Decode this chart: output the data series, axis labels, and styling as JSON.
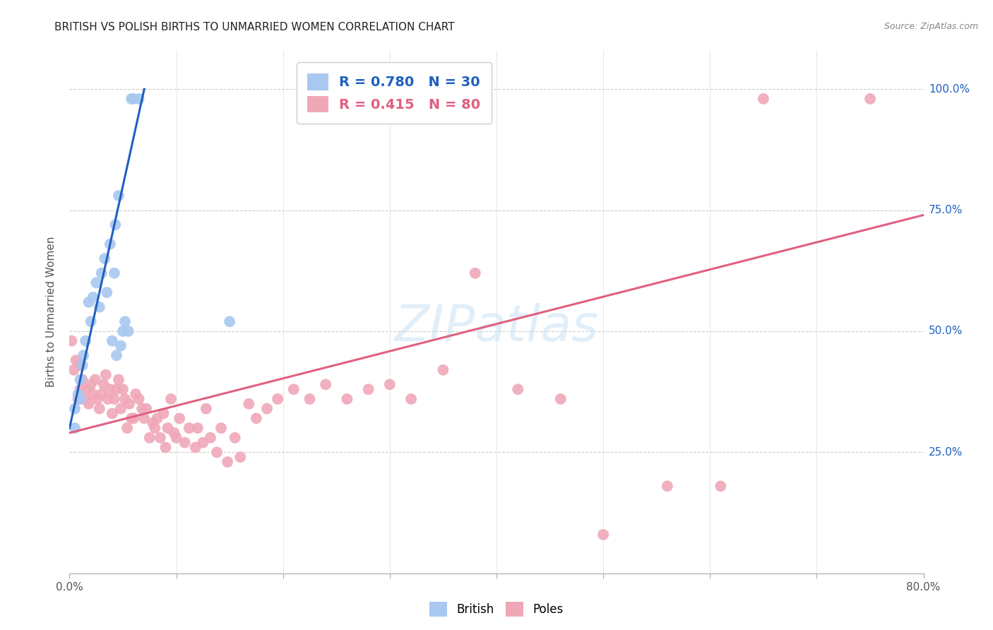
{
  "title": "BRITISH VS POLISH BIRTHS TO UNMARRIED WOMEN CORRELATION CHART",
  "source": "Source: ZipAtlas.com",
  "ylabel": "Births to Unmarried Women",
  "x_min": 0.0,
  "x_max": 0.8,
  "y_min": 0.0,
  "y_max": 1.08,
  "y_ticks": [
    0.25,
    0.5,
    0.75,
    1.0
  ],
  "y_tick_labels": [
    "25.0%",
    "50.0%",
    "75.0%",
    "100.0%"
  ],
  "british_color": "#a8c8f0",
  "poles_color": "#f0a8b8",
  "british_line_color": "#2060c0",
  "poles_line_color": "#e06080",
  "british_R": 0.78,
  "british_N": 30,
  "poles_R": 0.415,
  "poles_N": 80,
  "watermark_text": "ZIPatlas",
  "british_x": [
    0.005,
    0.005,
    0.008,
    0.01,
    0.01,
    0.012,
    0.013,
    0.015,
    0.018,
    0.02,
    0.022,
    0.025,
    0.028,
    0.03,
    0.033,
    0.035,
    0.038,
    0.04,
    0.042,
    0.043,
    0.044,
    0.046,
    0.048,
    0.05,
    0.052,
    0.055,
    0.058,
    0.06,
    0.065,
    0.15
  ],
  "british_y": [
    0.34,
    0.3,
    0.37,
    0.4,
    0.36,
    0.43,
    0.45,
    0.48,
    0.56,
    0.52,
    0.57,
    0.6,
    0.55,
    0.62,
    0.65,
    0.58,
    0.68,
    0.48,
    0.62,
    0.72,
    0.45,
    0.78,
    0.47,
    0.5,
    0.52,
    0.5,
    0.98,
    0.98,
    0.98,
    0.52
  ],
  "poles_x": [
    0.002,
    0.004,
    0.006,
    0.008,
    0.01,
    0.01,
    0.012,
    0.014,
    0.016,
    0.018,
    0.02,
    0.022,
    0.024,
    0.026,
    0.028,
    0.03,
    0.032,
    0.034,
    0.036,
    0.038,
    0.04,
    0.042,
    0.044,
    0.046,
    0.048,
    0.05,
    0.052,
    0.054,
    0.056,
    0.058,
    0.06,
    0.062,
    0.065,
    0.068,
    0.07,
    0.072,
    0.075,
    0.078,
    0.08,
    0.082,
    0.085,
    0.088,
    0.09,
    0.092,
    0.095,
    0.098,
    0.1,
    0.103,
    0.108,
    0.112,
    0.118,
    0.12,
    0.125,
    0.128,
    0.132,
    0.138,
    0.142,
    0.148,
    0.155,
    0.16,
    0.168,
    0.175,
    0.185,
    0.195,
    0.21,
    0.225,
    0.24,
    0.26,
    0.28,
    0.3,
    0.32,
    0.35,
    0.38,
    0.42,
    0.46,
    0.5,
    0.56,
    0.61,
    0.65,
    0.75
  ],
  "poles_y": [
    0.48,
    0.42,
    0.44,
    0.36,
    0.43,
    0.38,
    0.4,
    0.36,
    0.38,
    0.35,
    0.39,
    0.37,
    0.4,
    0.36,
    0.34,
    0.37,
    0.39,
    0.41,
    0.36,
    0.38,
    0.33,
    0.36,
    0.38,
    0.4,
    0.34,
    0.38,
    0.36,
    0.3,
    0.35,
    0.32,
    0.32,
    0.37,
    0.36,
    0.34,
    0.32,
    0.34,
    0.28,
    0.31,
    0.3,
    0.32,
    0.28,
    0.33,
    0.26,
    0.3,
    0.36,
    0.29,
    0.28,
    0.32,
    0.27,
    0.3,
    0.26,
    0.3,
    0.27,
    0.34,
    0.28,
    0.25,
    0.3,
    0.23,
    0.28,
    0.24,
    0.35,
    0.32,
    0.34,
    0.36,
    0.38,
    0.36,
    0.39,
    0.36,
    0.38,
    0.39,
    0.36,
    0.42,
    0.62,
    0.38,
    0.36,
    0.08,
    0.18,
    0.18,
    0.98,
    0.98
  ],
  "british_line_x": [
    0.0,
    0.07
  ],
  "british_line_y": [
    0.3,
    1.0
  ],
  "poles_line_x": [
    0.0,
    0.8
  ],
  "poles_line_y": [
    0.29,
    0.74
  ]
}
